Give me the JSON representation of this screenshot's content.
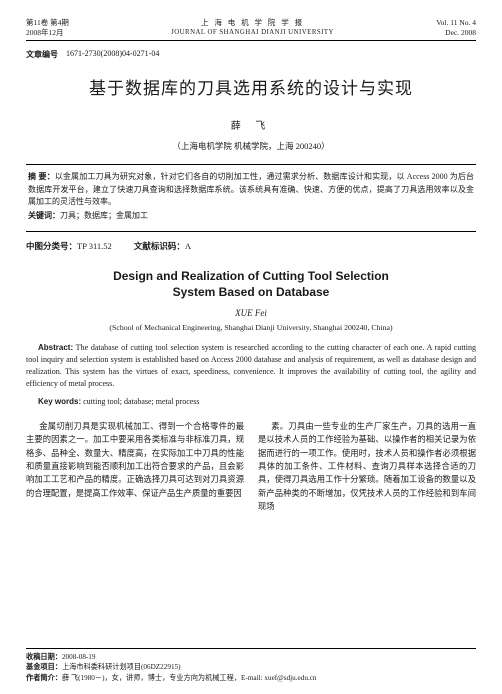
{
  "header": {
    "vol_line_cn": "第11卷 第4期",
    "date_line_cn": "2008年12月",
    "journal_cn": "上 海 电 机 学 院 学 报",
    "journal_en": "JOURNAL OF SHANGHAI DIANJI UNIVERSITY",
    "vol_line_en": "Vol. 11 No. 4",
    "date_line_en": "Dec. 2008"
  },
  "article_id": {
    "label": "文章编号",
    "value": "1671-2730(2008)04-0271-04"
  },
  "title_cn": "基于数据库的刀具选用系统的设计与实现",
  "author_cn": "薛 飞",
  "affil_cn": "（上海电机学院 机械学院，上海 200240）",
  "abstract_cn": {
    "abs_label": "摘 要：",
    "abs_text": "以金属加工刀具为研究对象，针对它们各自的切削加工性，通过需求分析、数据库设计和实现，以 Access 2000 为后台数据库开发平台，建立了快速刀具查询和选择数据库系统。该系统具有准确、快速、方便的优点，提高了刀具选用效率以及金属加工的灵活性与效率。",
    "kw_label": "关键词：",
    "kw_text": "刀具；数据库；金属加工"
  },
  "class_row": {
    "clc_label": "中图分类号：",
    "clc_value": "TP 311.52",
    "doc_label": "文献标识码：",
    "doc_value": "A"
  },
  "title_en_line1": "Design and Realization of Cutting Tool Selection",
  "title_en_line2": "System Based on Database",
  "author_en": "XUE Fei",
  "affil_en": "(School of Mechanical Engineering, Shanghai Dianji University, Shanghai 200240, China)",
  "abstract_en": {
    "label": "Abstract:",
    "text": " The database of cutting tool selection system is researched according to the cutting character of each one. A rapid cutting tool inquiry and selection system is established based on Access 2000 database and analysis of requirement, as well as database design and realization. This system has the virtues of exact, speediness, convenience. It improves the availability of cutting tool, the agility and efficiency of metal process."
  },
  "keywords_en": {
    "label": "Key words:",
    "text": " cutting tool; database; metal process"
  },
  "body": {
    "col1": "金属切削刀具是实现机械加工、得到一个合格零件的最主要的因素之一。加工中要采用各类标准与非标准刀具，规格多、品种全、数量大、精度高，在实际加工中刀具的性能和质量直接影响到能否顺利加工出符合要求的产品，且会影响加工工艺和产品的精度。正确选择刀具可达到对刀具资源的合理配置，是提高工作效率、保证产品生产质量的重要因",
    "col2": "素。刀具由一些专业的生产厂家生产，刀具的选用一直是以技术人员的工作经验为基础、以操作者的相关记录为依据而进行的一项工作。使用时，技术人员和操作者必须根据具体的加工条件、工件材料、查询刀具样本选择合适的刀具，使得刀具选用工作十分繁琐。随着加工设备的数量以及新产品种类的不断增加，仅凭技术人员的工作经验和到车间现场"
  },
  "footer": {
    "recv_label": "收稿日期：",
    "recv_value": "2008-08-19",
    "fund_label": "基金项目：",
    "fund_value": "上海市科委科研计划项目(06DZ22915)",
    "auth_label": "作者简介：",
    "auth_value": "薛 飞(1980－)，女，讲师，博士，专业方向为机械工程，E-mail: xuef@sdju.edu.cn"
  },
  "colors": {
    "text": "#1a1a1a",
    "background": "#ffffff",
    "rule": "#000000"
  },
  "fonts": {
    "serif": "SimSun / Times New Roman",
    "heiti": "SimHei",
    "kaiti": "KaiTi"
  }
}
